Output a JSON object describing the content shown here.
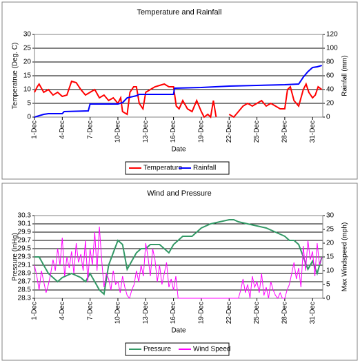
{
  "chart_data": [
    {
      "type": "line",
      "title": "Temperature and Rainfall",
      "xlabel": "Date",
      "ylabel": "Temperatrue (Deg. C)",
      "y2label": "Rainfall (mm)",
      "xlim": [
        1,
        32.1
      ],
      "xticks": [
        {
          "value": 1,
          "label": "1-Dec"
        },
        {
          "value": 4,
          "label": "4-Dec"
        },
        {
          "value": 7,
          "label": "7-Dec"
        },
        {
          "value": 10,
          "label": "10-Dec"
        },
        {
          "value": 13,
          "label": "13-Dec"
        },
        {
          "value": 16,
          "label": "16-Dec"
        },
        {
          "value": 19,
          "label": "19-Dec"
        },
        {
          "value": 22,
          "label": "22-Dec"
        },
        {
          "value": 25,
          "label": "25-Dec"
        },
        {
          "value": 28,
          "label": "28-Dec"
        },
        {
          "value": 31,
          "label": "31-Dec"
        }
      ],
      "ylim": [
        0,
        30
      ],
      "yticks": [
        0,
        5,
        10,
        15,
        20,
        25,
        30
      ],
      "y2lim": [
        0,
        120
      ],
      "y2ticks": [
        0,
        20,
        40,
        60,
        80,
        100,
        120
      ],
      "grid": true,
      "legend": "bottom",
      "series": [
        {
          "name": "Temperature",
          "color": "#ff0000",
          "x": [
            1,
            1.3,
            1.5,
            2,
            2.5,
            3,
            3.5,
            4,
            4.5,
            5,
            5.5,
            6,
            6.5,
            7,
            7.5,
            8,
            8.5,
            9,
            9.5,
            10,
            10.3,
            10.5,
            11,
            11.3,
            11.7,
            12,
            12.3,
            12.7,
            13,
            13.5,
            14,
            14.5,
            15,
            15.5,
            16,
            16.3,
            16.6,
            17,
            17.5,
            18,
            18.5,
            19,
            19.3,
            19.7,
            20,
            20.3,
            20.6,
            21,
            22,
            22.5,
            23,
            23.5,
            24,
            24.5,
            25,
            25.5,
            26,
            26.5,
            27,
            27.5,
            28,
            28.3,
            28.6,
            29,
            29.5,
            30,
            30.3,
            30.6,
            31,
            31.3,
            31.6,
            32
          ],
          "values": [
            9,
            11,
            12,
            9,
            10,
            8,
            9,
            7.5,
            8,
            13,
            12.5,
            10,
            8,
            9,
            10,
            7,
            8,
            6,
            7,
            5,
            7,
            2,
            1,
            9,
            11,
            11,
            5,
            3,
            9,
            10,
            11,
            11.5,
            12,
            11,
            11,
            4,
            3,
            6,
            3,
            2,
            6,
            2,
            0,
            1,
            0,
            6,
            0,
            null,
            1,
            0,
            2,
            4,
            5,
            4,
            5,
            6,
            4,
            5,
            4,
            3,
            3,
            10,
            11,
            6,
            4,
            10,
            12,
            9,
            7,
            8,
            11,
            10
          ]
        },
        {
          "name": "Rainfall",
          "color": "#0000ff",
          "axis": "y2",
          "x": [
            1,
            1.5,
            2,
            2.5,
            4,
            4.2,
            6.8,
            7,
            10,
            10.5,
            11,
            12,
            12.3,
            16,
            16.1,
            19,
            22,
            25,
            28,
            29.5,
            30,
            30.5,
            31,
            31.5,
            32
          ],
          "values": [
            0,
            2,
            4,
            5,
            5,
            8,
            9,
            19,
            19,
            21,
            28,
            31,
            33,
            33,
            42,
            43,
            45,
            46,
            47,
            48,
            58,
            66,
            72,
            73,
            75
          ]
        }
      ]
    },
    {
      "type": "line",
      "title": "Wind and Pressure",
      "xlabel": "Date",
      "ylabel": "Pressure (inHg)",
      "y2label": "Max Windspeed (mph)",
      "xlim": [
        1,
        32.1
      ],
      "xticks": [
        {
          "value": 1,
          "label": "1-Dec"
        },
        {
          "value": 4,
          "label": "4-Dec"
        },
        {
          "value": 7,
          "label": "7-Dec"
        },
        {
          "value": 10,
          "label": "10-Dec"
        },
        {
          "value": 13,
          "label": "13-Dec"
        },
        {
          "value": 16,
          "label": "16-Dec"
        },
        {
          "value": 19,
          "label": "19-Dec"
        },
        {
          "value": 22,
          "label": "22-Dec"
        },
        {
          "value": 25,
          "label": "25-Dec"
        },
        {
          "value": 28,
          "label": "28-Dec"
        },
        {
          "value": 31,
          "label": "31-Dec"
        }
      ],
      "ylim": [
        28.3,
        30.3
      ],
      "yticks": [
        28.3,
        28.5,
        28.7,
        28.9,
        29.1,
        29.3,
        29.5,
        29.7,
        29.9,
        30.1,
        30.3
      ],
      "y2lim": [
        0,
        30
      ],
      "y2ticks": [
        0,
        5,
        10,
        15,
        20,
        25,
        30
      ],
      "grid": true,
      "legend": "bottom",
      "series": [
        {
          "name": "Pressure",
          "color": "#339966",
          "x": [
            1,
            1.5,
            2,
            2.5,
            3,
            3.5,
            4,
            5,
            6,
            6.5,
            7,
            7.5,
            8,
            8.5,
            9,
            9.5,
            10,
            10.5,
            11,
            11.5,
            12,
            12.5,
            13,
            13.5,
            14,
            14.5,
            15,
            15.5,
            16,
            16.5,
            17,
            17.5,
            18,
            18.5,
            19,
            20,
            21,
            22,
            22.5,
            23,
            24,
            25,
            26,
            27,
            28,
            28.5,
            29,
            29.5,
            30,
            30.5,
            31,
            31.5,
            32
          ],
          "values": [
            29.3,
            29.3,
            29.1,
            28.9,
            28.8,
            28.7,
            28.8,
            28.9,
            28.8,
            28.7,
            28.9,
            28.7,
            28.5,
            28.4,
            29.1,
            29.4,
            29.7,
            29.6,
            29.0,
            29.2,
            29.4,
            29.5,
            29.5,
            29.6,
            29.6,
            29.6,
            29.5,
            29.4,
            29.6,
            29.7,
            29.8,
            29.8,
            29.8,
            29.9,
            30.0,
            30.1,
            30.15,
            30.2,
            30.2,
            30.15,
            30.1,
            30.05,
            30.0,
            29.9,
            29.8,
            29.7,
            29.7,
            29.6,
            29.3,
            29.0,
            29.2,
            28.9,
            29.3
          ]
        },
        {
          "name": "Wind Speed",
          "color": "#ff00ff",
          "axis": "y2",
          "x": [
            1,
            1.25,
            1.5,
            1.75,
            2,
            2.25,
            2.5,
            2.75,
            3,
            3.25,
            3.5,
            3.75,
            4,
            4.25,
            4.5,
            4.75,
            5,
            5.25,
            5.5,
            5.75,
            6,
            6.25,
            6.5,
            6.75,
            7,
            7.25,
            7.5,
            7.75,
            8,
            8.25,
            8.5,
            8.75,
            9,
            9.25,
            9.5,
            9.75,
            10,
            10.25,
            10.5,
            10.75,
            11,
            11.25,
            11.5,
            11.75,
            12,
            12.25,
            12.5,
            12.75,
            13,
            13.25,
            13.5,
            13.75,
            14,
            14.25,
            14.5,
            14.75,
            15,
            15.25,
            15.5,
            15.75,
            16,
            16.25,
            16.5,
            16.75,
            17,
            17.25,
            17.5,
            17.75,
            18,
            18.25,
            18.5,
            18.75,
            19,
            19.25,
            19.5,
            19.75,
            20,
            20.25,
            20.5,
            20.75,
            21,
            21.25,
            21.5,
            21.75,
            22,
            22.25,
            22.5,
            22.75,
            23,
            23.25,
            23.5,
            23.75,
            24,
            24.25,
            24.5,
            24.75,
            25,
            25.25,
            25.5,
            25.75,
            26,
            26.25,
            26.5,
            26.75,
            27,
            27.25,
            27.5,
            27.75,
            28,
            28.25,
            28.5,
            28.75,
            29,
            29.25,
            29.5,
            29.75,
            30,
            30.25,
            30.5,
            30.75,
            31,
            31.25,
            31.5,
            31.75,
            32
          ],
          "values": [
            12,
            8,
            3,
            10,
            6,
            2,
            5,
            9,
            14,
            10,
            18,
            12,
            22,
            8,
            15,
            11,
            17,
            9,
            20,
            13,
            16,
            10,
            21,
            6,
            18,
            12,
            24,
            10,
            26,
            14,
            4,
            9,
            7,
            3,
            10,
            5,
            6,
            2,
            8,
            4,
            1,
            0,
            3,
            5,
            10,
            6,
            12,
            8,
            20,
            15,
            8,
            18,
            14,
            6,
            12,
            5,
            9,
            13,
            4,
            7,
            3,
            8,
            0,
            0,
            0,
            0,
            0,
            0,
            0,
            0,
            0,
            0,
            0,
            0,
            0,
            0,
            0,
            0,
            0,
            0,
            0,
            0,
            0,
            0,
            0,
            0,
            0,
            0,
            0,
            3,
            7,
            2,
            5,
            0,
            8,
            4,
            6,
            2,
            9,
            1,
            4,
            0,
            6,
            3,
            1,
            0,
            2,
            0,
            0,
            3,
            5,
            9,
            13,
            7,
            11,
            4,
            19,
            10,
            21,
            14,
            17,
            8,
            20,
            12,
            15
          ]
        }
      ]
    }
  ]
}
